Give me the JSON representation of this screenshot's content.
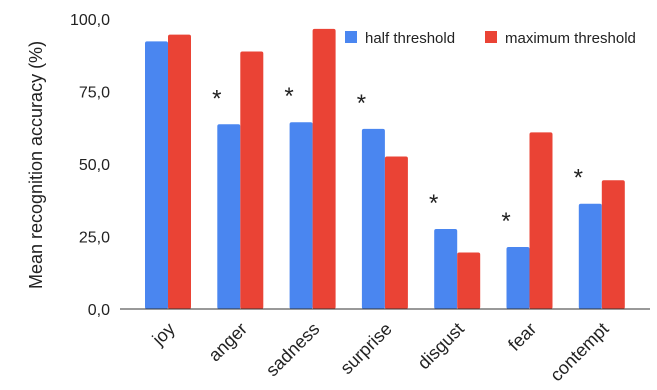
{
  "chart_data": {
    "type": "bar",
    "title": "",
    "xlabel": "",
    "ylabel": "Mean recognition accuracy (%)",
    "ylim": [
      0,
      100
    ],
    "yticks": [
      0,
      25,
      50,
      75,
      100
    ],
    "ytick_labels": [
      "0,0",
      "25,0",
      "50,0",
      "75,0",
      "100,0"
    ],
    "grid": false,
    "legend_position": "top-right",
    "categories": [
      "joy",
      "anger",
      "sadness",
      "surprise",
      "disgust",
      "fear",
      "contempt"
    ],
    "series": [
      {
        "name": "half threshold",
        "color": "#4a86f0",
        "values": [
          92.3,
          63.7,
          64.4,
          62.1,
          27.6,
          21.4,
          36.3
        ]
      },
      {
        "name": "maximum threshold",
        "color": "#ea4335",
        "values": [
          94.6,
          88.8,
          96.6,
          52.6,
          19.5,
          60.9,
          44.4
        ]
      }
    ],
    "annotations": [
      {
        "category": "anger",
        "text": "*"
      },
      {
        "category": "sadness",
        "text": "*"
      },
      {
        "category": "surprise",
        "text": "*"
      },
      {
        "category": "disgust",
        "text": "*"
      },
      {
        "category": "fear",
        "text": "*"
      },
      {
        "category": "contempt",
        "text": "*"
      }
    ]
  }
}
